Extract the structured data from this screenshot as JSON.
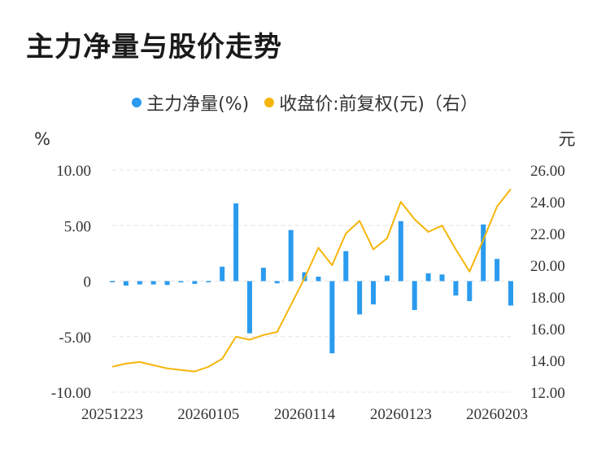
{
  "title": "主力净量与股价走势",
  "legend": [
    {
      "label": "主力净量(%)",
      "color": "#2b9bef"
    },
    {
      "label": "收盘价:前复权(元)（右）",
      "color": "#f5b50a"
    }
  ],
  "chart_data": {
    "type": "bar",
    "title": "主力净量与股价走势",
    "left_unit": "%",
    "right_unit": "元",
    "left_ticks": [
      "10.00",
      "5.00",
      "0",
      "-5.00",
      "-10.00"
    ],
    "right_ticks": [
      "26.00",
      "24.00",
      "22.00",
      "20.00",
      "18.00",
      "16.00",
      "14.00",
      "12.00"
    ],
    "ylim_left": [
      -10,
      10
    ],
    "ylim_right": [
      12,
      26
    ],
    "x_tick_labels": [
      "20251223",
      "20260105",
      "20260114",
      "20260123",
      "20260203"
    ],
    "x_tick_index": [
      0,
      7,
      14,
      21,
      28
    ],
    "grid": true,
    "legend_position": "top-center",
    "series": [
      {
        "name": "主力净量(%)",
        "type": "bar",
        "axis": "left",
        "color": "#2b9bef",
        "values": [
          -0.1,
          -0.4,
          -0.3,
          -0.3,
          -0.35,
          -0.05,
          -0.25,
          -0.1,
          1.3,
          7.0,
          -4.7,
          1.2,
          -0.2,
          4.6,
          0.8,
          0.4,
          -6.5,
          2.7,
          -3.0,
          -2.1,
          0.5,
          5.4,
          -2.6,
          0.7,
          0.6,
          -1.3,
          -1.8,
          5.1,
          2.0,
          -2.2
        ]
      },
      {
        "name": "收盘价:前复权(元)（右）",
        "type": "line",
        "axis": "right",
        "color": "#f5b50a",
        "values": [
          13.6,
          13.8,
          13.9,
          13.7,
          13.5,
          13.4,
          13.3,
          13.6,
          14.1,
          15.5,
          15.3,
          15.6,
          15.8,
          17.5,
          19.2,
          21.1,
          20.0,
          22.0,
          22.8,
          21.0,
          21.7,
          24.0,
          22.9,
          22.1,
          22.5,
          21.0,
          19.6,
          21.6,
          23.7,
          24.8
        ]
      }
    ]
  }
}
